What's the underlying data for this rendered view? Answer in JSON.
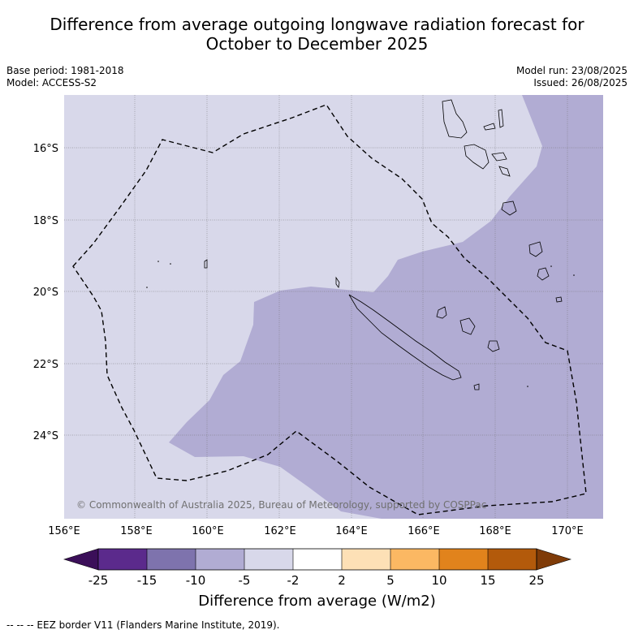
{
  "title_line1": "Difference from average outgoing longwave radiation forecast for",
  "title_line2": "October to December 2025",
  "info_left": {
    "base_period": "Base period: 1981-2018",
    "model": "Model: ACCESS-S2"
  },
  "info_right": {
    "model_run": "Model run: 23/08/2025",
    "issued": "Issued: 26/08/2025"
  },
  "map": {
    "latitude_labels": [
      "16°S",
      "18°S",
      "20°S",
      "22°S",
      "24°S"
    ],
    "longitude_labels": [
      "156°E",
      "158°E",
      "160°E",
      "162°E",
      "164°E",
      "166°E",
      "168°E",
      "170°E"
    ],
    "copyright": "© Commonwealth of Australia 2025, Bureau of Meteorology, supported by COSPPac",
    "region_colors": {
      "background_band": "#d8d8ea",
      "anomaly_band": "#b1acd3",
      "eez_line": "#000000"
    }
  },
  "colorbar": {
    "title": "Difference from average (W/m2)",
    "ticks": [
      "-25",
      "-15",
      "-10",
      "-5",
      "-2",
      "2",
      "5",
      "10",
      "15",
      "25"
    ],
    "colors": [
      "#3b0f59",
      "#5b2a8c",
      "#7e73ad",
      "#b1acd3",
      "#d8d8ea",
      "#ffffff",
      "#fde0b6",
      "#fbb863",
      "#e1831c",
      "#b35a0b",
      "#7f3b08"
    ]
  },
  "footnote": "-- -- -- EEZ border V11 (Flanders Marine Institute, 2019)."
}
